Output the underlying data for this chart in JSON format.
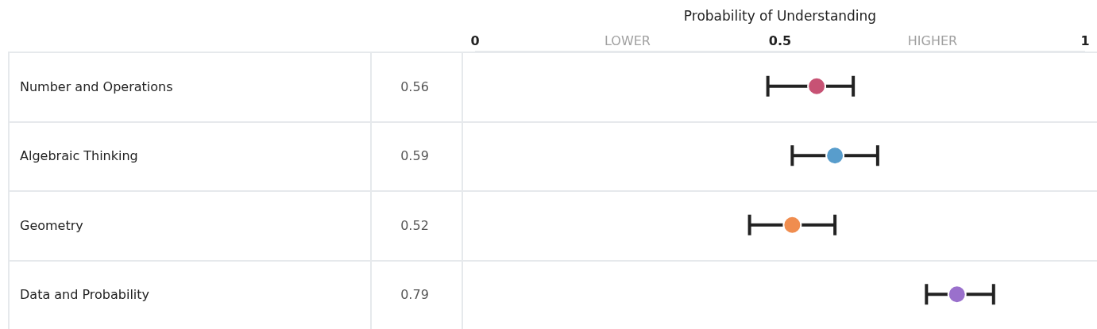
{
  "chart_data": {
    "type": "scatter",
    "orientation": "horizontal",
    "x2label": "Probability of Understanding",
    "categories": [
      "Number and Operations",
      "Algebraic Thinking",
      "Geometry",
      "Data and Probability"
    ],
    "series": [
      {
        "axis": "x2",
        "values": [
          0.56,
          0.59,
          0.52,
          0.79
        ],
        "colors": [
          "#c75274",
          "#589dcc",
          "#f08d4f",
          "#9a70cc"
        ],
        "errors": [
          [
            0.48,
            0.62
          ],
          [
            0.52,
            0.66
          ],
          [
            0.45,
            0.59
          ],
          [
            0.74,
            0.85
          ]
        ]
      }
    ],
    "data_labels": true,
    "x2lim": [
      0,
      1
    ],
    "x2ticks": [
      0,
      {
        "value": 0.25,
        "label": "LOWER"
      },
      0.5,
      {
        "value": 0.75,
        "label": "HIGHER"
      },
      1
    ],
    "marker": "circle"
  }
}
